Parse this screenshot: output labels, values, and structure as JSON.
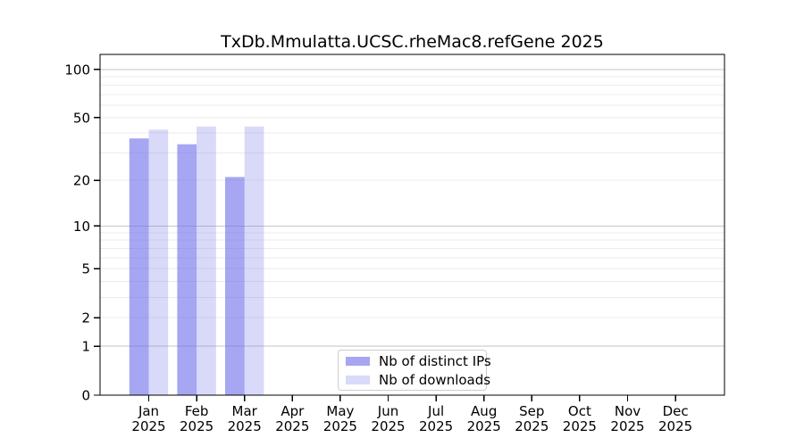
{
  "window": {
    "background": "#ffffff"
  },
  "chart_data": {
    "type": "bar",
    "title": "TxDb.Mmulatta.UCSC.rheMac8.refGene 2025",
    "categories": [
      "Jan",
      "Feb",
      "Mar",
      "Apr",
      "May",
      "Jun",
      "Jul",
      "Aug",
      "Sep",
      "Oct",
      "Nov",
      "Dec"
    ],
    "category_sublabel": "2025",
    "series": [
      {
        "name": "Nb of distinct IPs",
        "values": [
          37,
          34,
          21,
          0,
          0,
          0,
          0,
          0,
          0,
          0,
          0,
          0
        ],
        "color": "#6666e8",
        "fill_opacity": 0.58
      },
      {
        "name": "Nb of downloads",
        "values": [
          42,
          44,
          44,
          0,
          0,
          0,
          0,
          0,
          0,
          0,
          0,
          0
        ],
        "color": "#6666e8",
        "fill_opacity": 0.25
      }
    ],
    "xlabel": "",
    "ylabel": "",
    "yscale": "log1p",
    "ylim": [
      0,
      124
    ],
    "yticks": [
      0,
      1,
      2,
      5,
      10,
      20,
      50,
      100
    ],
    "minor_gridlines": [
      2,
      3,
      4,
      5,
      6,
      7,
      8,
      9,
      20,
      30,
      40,
      50,
      60,
      70,
      80,
      90
    ],
    "major_gridlines": [
      1,
      10,
      100
    ],
    "grid": true,
    "legend_position": "inside-bottom-center",
    "colors": {
      "spine": "#000000",
      "tick_label": "#000000",
      "major_grid": "#c6c6c6",
      "minor_grid": "#ebebeb",
      "legend_border": "#cccccc"
    }
  }
}
